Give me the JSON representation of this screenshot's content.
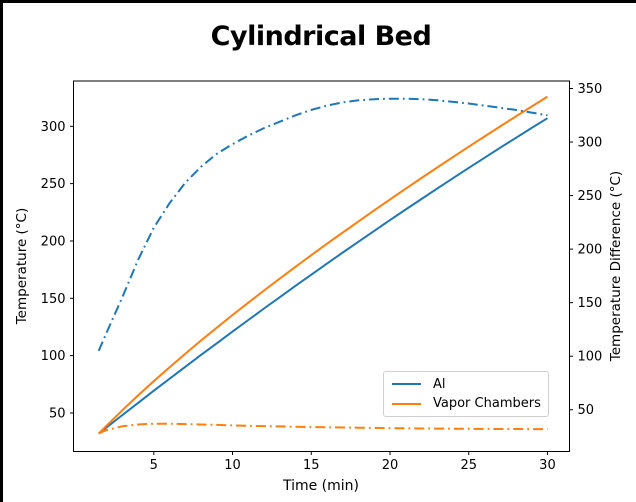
{
  "chart_data": {
    "type": "line",
    "title": "Cylindrical Bed",
    "xlabel": "Time (min)",
    "ylabel_left": "Temperature (°C)",
    "ylabel_right": "Temperature Difference (°C)",
    "grid": false,
    "xlim": [
      -0.1,
      31.4
    ],
    "ylim_left": [
      16.4,
      339.5
    ],
    "ylim_right": [
      11.0,
      357.0
    ],
    "xticks": [
      5,
      10,
      15,
      20,
      25,
      30
    ],
    "yticks_left": [
      50,
      100,
      150,
      200,
      250,
      300
    ],
    "yticks_right": [
      50,
      100,
      150,
      200,
      250,
      300,
      350
    ],
    "legend": {
      "position": "lower right",
      "entries": [
        {
          "label": "Al",
          "color": "#1f77b4"
        },
        {
          "label": "Vapor Chambers",
          "color": "#ff7f0e"
        }
      ]
    },
    "x": [
      1.5,
      2,
      3,
      4,
      5,
      6,
      7,
      8,
      9,
      10,
      11,
      12,
      13,
      14,
      15,
      16,
      17,
      18,
      19,
      20,
      21,
      22,
      23,
      24,
      25,
      26,
      27,
      28,
      29,
      30
    ],
    "series": [
      {
        "name": "Al temperature",
        "axis": "left",
        "style": "solid",
        "color": "#1f77b4",
        "values": [
          32,
          37.4,
          48.1,
          58.8,
          69.4,
          79.9,
          90.3,
          100.6,
          110.8,
          121,
          131.1,
          141.1,
          151,
          160.9,
          170.6,
          180.3,
          189.9,
          199.4,
          208.8,
          218.2,
          227.4,
          236.6,
          245.7,
          254.7,
          263.7,
          272.5,
          281.3,
          290,
          298.6,
          307.1
        ]
      },
      {
        "name": "Vapor Chambers temperature",
        "axis": "left",
        "style": "solid",
        "color": "#ff7f0e",
        "values": [
          32,
          38.9,
          52.3,
          65.3,
          77.8,
          89.9,
          101.7,
          113.2,
          124.4,
          135.4,
          146.2,
          156.8,
          167.2,
          177.5,
          187.6,
          197.6,
          207.4,
          217.1,
          226.7,
          236.2,
          245.6,
          254.9,
          264.1,
          273.1,
          282.2,
          291.1,
          299.9,
          308.7,
          317.3,
          325.9
        ]
      },
      {
        "name": "Al temperature difference",
        "axis": "right",
        "style": "dashdot",
        "color": "#1f77b4",
        "values": [
          105,
          122,
          155,
          190,
          220,
          243,
          262,
          277,
          289,
          298,
          306,
          313,
          319,
          325,
          330,
          334,
          337,
          339,
          340,
          340.5,
          340.5,
          340,
          339,
          337.5,
          336,
          334,
          332,
          330,
          327.5,
          325
        ]
      },
      {
        "name": "Vapor Chambers temperature difference",
        "axis": "right",
        "style": "dashdot",
        "color": "#ff7f0e",
        "values": [
          28,
          31,
          34.5,
          36.2,
          37,
          37,
          36.6,
          36.2,
          35.8,
          35.4,
          35,
          34.7,
          34.4,
          34.1,
          33.8,
          33.6,
          33.4,
          33.2,
          33,
          32.8,
          32.7,
          32.5,
          32.4,
          32.3,
          32.2,
          32.1,
          32,
          32,
          31.9,
          31.9
        ]
      }
    ]
  }
}
